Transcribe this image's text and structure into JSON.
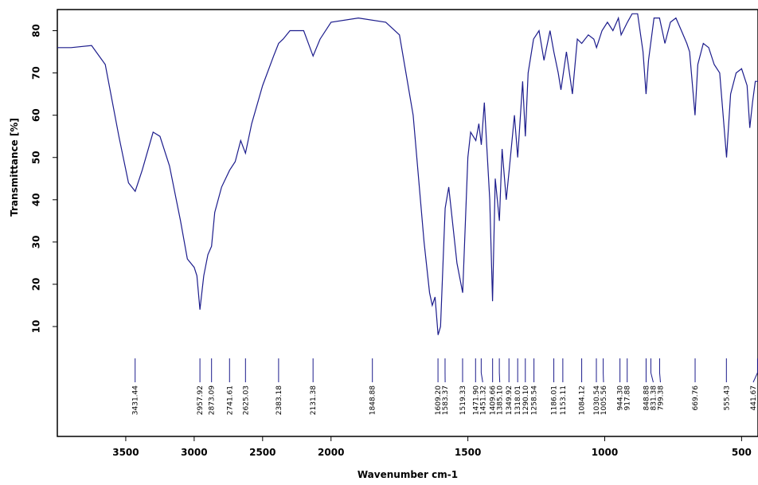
{
  "chart_data": {
    "type": "line",
    "x_label": "Wavenumber cm-1",
    "y_label": "Transmittance [%]",
    "xlim": [
      4000,
      440
    ],
    "x_scale_break": 2000,
    "ylim": [
      -16,
      85
    ],
    "xticks": [
      3500,
      3000,
      2500,
      2000,
      1500,
      1000,
      500
    ],
    "yticks": [
      10,
      20,
      30,
      40,
      50,
      60,
      70,
      80
    ],
    "color": "#1c1c8c",
    "x": [
      4000,
      3900,
      3750,
      3650,
      3550,
      3480,
      3431,
      3380,
      3300,
      3250,
      3180,
      3100,
      3050,
      3000,
      2980,
      2958,
      2930,
      2900,
      2873,
      2850,
      2800,
      2741,
      2700,
      2660,
      2625,
      2580,
      2500,
      2420,
      2383,
      2350,
      2300,
      2200,
      2131,
      2080,
      2000,
      1900,
      1800,
      1750,
      1700,
      1660,
      1640,
      1630,
      1620,
      1609,
      1600,
      1583,
      1570,
      1540,
      1519,
      1500,
      1490,
      1471,
      1460,
      1451,
      1440,
      1420,
      1410,
      1400,
      1385,
      1375,
      1360,
      1349,
      1330,
      1318,
      1300,
      1290,
      1280,
      1260,
      1240,
      1222,
      1200,
      1186,
      1170,
      1160,
      1140,
      1118,
      1100,
      1084,
      1060,
      1040,
      1030,
      1010,
      990,
      970,
      950,
      940,
      917,
      900,
      880,
      860,
      849,
      840,
      820,
      800,
      790,
      780,
      760,
      740,
      720,
      700,
      690,
      670,
      660,
      640,
      620,
      600,
      580,
      555,
      540,
      520,
      500,
      480,
      470,
      460,
      450,
      440
    ],
    "values": [
      76,
      76,
      76.5,
      72,
      55,
      44,
      42,
      47,
      56,
      55,
      48,
      35,
      26,
      24,
      22,
      14,
      22,
      27,
      29,
      37,
      43,
      47,
      49,
      54,
      51,
      58,
      67,
      74,
      77,
      78,
      80,
      80,
      74,
      78,
      82,
      83,
      82,
      79,
      60,
      30,
      18,
      15,
      17,
      8,
      10,
      38,
      43,
      25,
      18,
      50,
      56,
      54,
      58,
      53,
      63,
      40,
      16,
      45,
      35,
      52,
      40,
      47,
      60,
      50,
      68,
      55,
      70,
      78,
      80,
      73,
      80,
      75,
      70,
      66,
      75,
      65,
      78,
      77,
      79,
      78,
      76,
      80,
      82,
      80,
      83,
      79,
      82,
      84,
      84,
      75,
      65,
      73,
      83,
      83,
      80,
      77,
      82,
      83,
      80,
      77,
      75,
      60,
      72,
      77,
      76,
      72,
      70,
      50,
      65,
      70,
      71,
      67,
      57,
      63,
      68,
      68
    ],
    "peaks": [
      3431.44,
      2957.92,
      2873.09,
      2741.61,
      2625.03,
      2383.18,
      2131.38,
      1848.88,
      1609.2,
      1583.37,
      1519.33,
      1471.9,
      1451.32,
      1409.66,
      1385.1,
      1349.92,
      1318.01,
      1290.1,
      1258.54,
      1186.01,
      1153.11,
      1084.12,
      1030.54,
      1005.56,
      944.3,
      917.88,
      848.88,
      831.38,
      799.38,
      669.76,
      555.43,
      441.67
    ],
    "peak_labels": [
      "3431.44",
      "2957.92",
      "2873.09",
      "2741.61",
      "2625.03",
      "2383.18",
      "2131.38",
      "1848.88",
      "1609.20",
      "1583.37",
      "1519.33",
      "1471.90",
      "1451.32",
      "1409.66",
      "1385.10",
      "1349.92",
      "1318.01",
      "1290.10",
      "1258.54",
      "1186.01",
      "1153.11",
      "1084.12",
      "1030.54",
      "1005.56",
      "944.30",
      "917.88",
      "848.88",
      "831.38",
      "799.38",
      "669.76",
      "555.43",
      "441.67"
    ]
  }
}
